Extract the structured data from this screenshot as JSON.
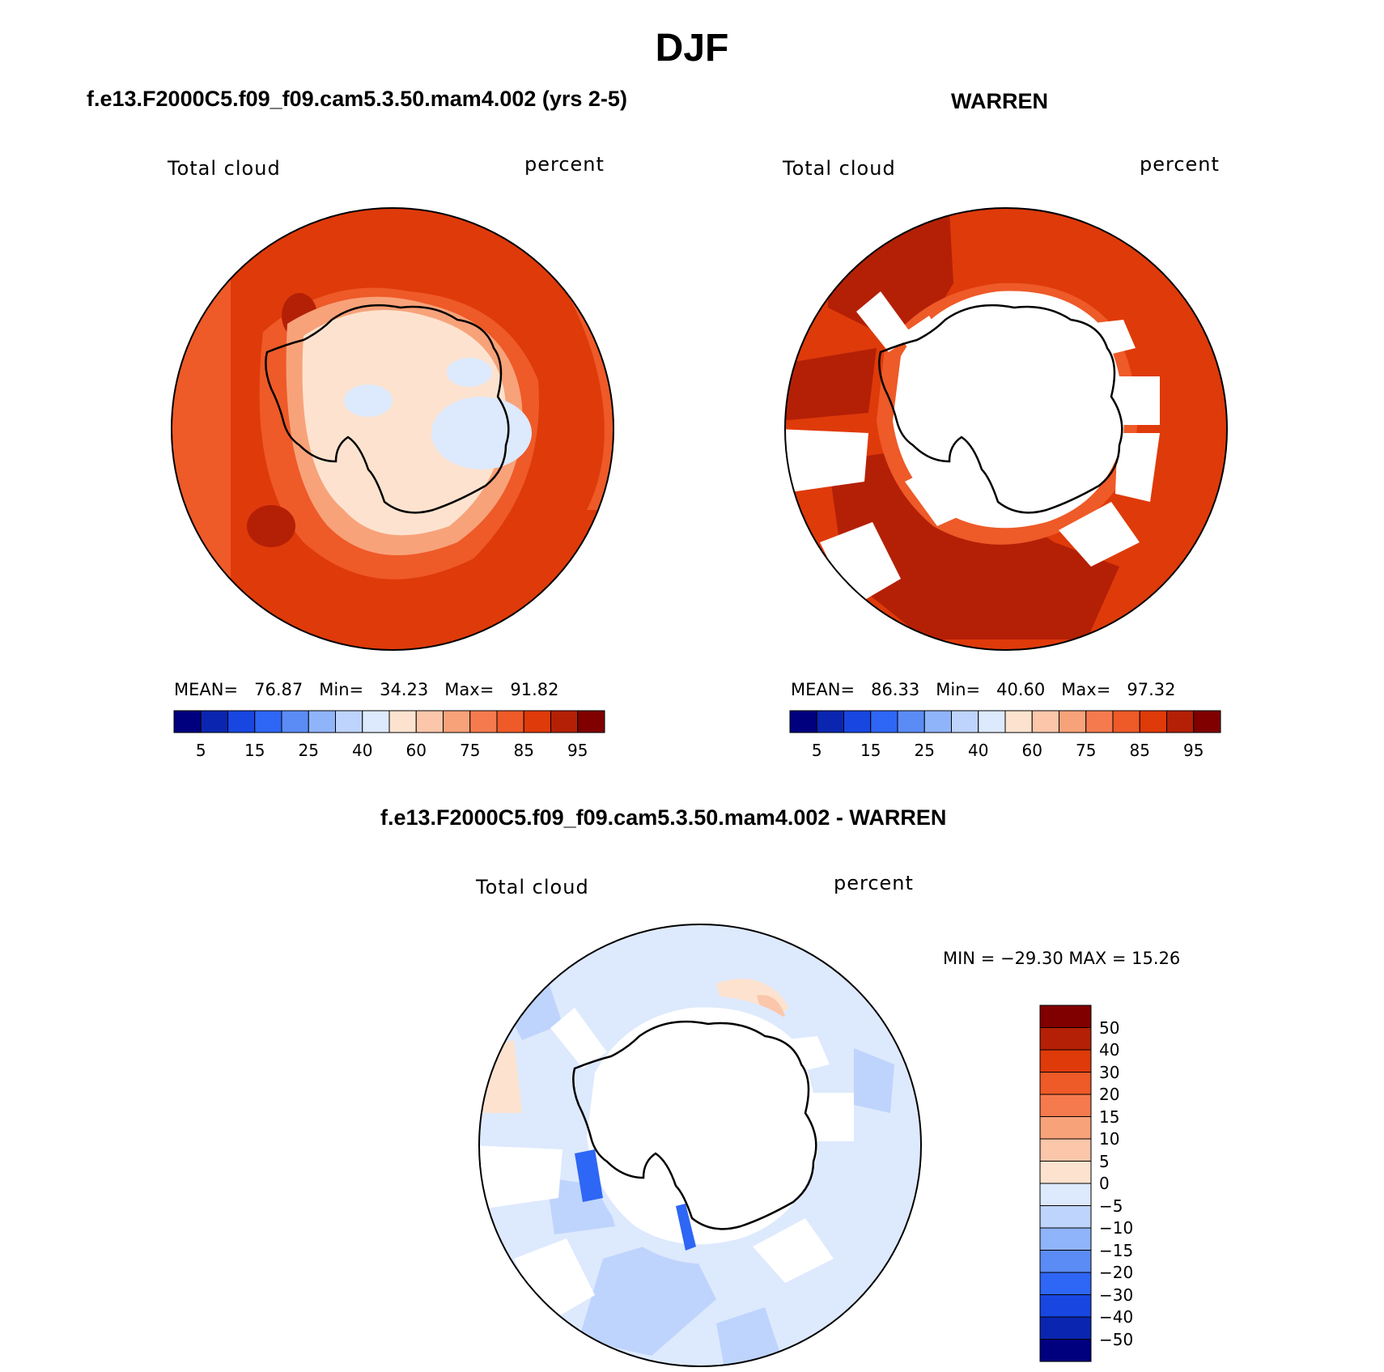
{
  "title": "DJF",
  "panels": [
    {
      "id": "model",
      "title": "f.e13.F2000C5.f09_f09.cam5.3.50.mam4.002 (yrs 2-5)",
      "left_label": "Total cloud",
      "right_label": "percent",
      "stats": {
        "mean_label": "MEAN=",
        "mean": "76.87",
        "min_label": "Min=",
        "min": "34.23",
        "max_label": "Max=",
        "max": "91.82"
      }
    },
    {
      "id": "obs",
      "title": "WARREN",
      "left_label": "Total cloud",
      "right_label": "percent",
      "stats": {
        "mean_label": "MEAN=",
        "mean": "86.33",
        "min_label": "Min=",
        "min": "40.60",
        "max_label": "Max=",
        "max": "97.32"
      }
    },
    {
      "id": "diff",
      "title": "f.e13.F2000C5.f09_f09.cam5.3.50.mam4.002 - WARREN",
      "left_label": "Total cloud",
      "right_label": "percent",
      "minmax": "MIN = −29.30 MAX =   15.26"
    }
  ],
  "chart_data": [
    {
      "type": "heatmap",
      "title": "f.e13.F2000C5.f09_f09.cam5.3.50.mam4.002 (yrs 2-5)",
      "projection": "south-polar-stereographic",
      "variable": "Total cloud",
      "units": "percent",
      "mean": 76.87,
      "min": 34.23,
      "max": 91.82,
      "colorbar": {
        "levels": [
          5,
          10,
          15,
          20,
          25,
          30,
          40,
          50,
          60,
          70,
          75,
          80,
          85,
          90,
          95
        ],
        "tick_labels": [
          "5",
          "15",
          "25",
          "40",
          "60",
          "75",
          "85",
          "95"
        ],
        "colors": [
          "#00007f",
          "#0a26b0",
          "#1846e0",
          "#2e66f5",
          "#5b8cf5",
          "#8fb4fa",
          "#bed4fc",
          "#dde9fd",
          "#fde3cf",
          "#fbc6aa",
          "#f8a27a",
          "#f57a4e",
          "#ee5a28",
          "#df3a0a",
          "#b42006",
          "#800000"
        ]
      }
    },
    {
      "type": "heatmap",
      "title": "WARREN",
      "projection": "south-polar-stereographic",
      "variable": "Total cloud",
      "units": "percent",
      "mean": 86.33,
      "min": 40.6,
      "max": 97.32,
      "colorbar": {
        "levels": [
          5,
          10,
          15,
          20,
          25,
          30,
          40,
          50,
          60,
          70,
          75,
          80,
          85,
          90,
          95
        ],
        "tick_labels": [
          "5",
          "15",
          "25",
          "40",
          "60",
          "75",
          "85",
          "95"
        ],
        "colors": [
          "#00007f",
          "#0a26b0",
          "#1846e0",
          "#2e66f5",
          "#5b8cf5",
          "#8fb4fa",
          "#bed4fc",
          "#dde9fd",
          "#fde3cf",
          "#fbc6aa",
          "#f8a27a",
          "#f57a4e",
          "#ee5a28",
          "#df3a0a",
          "#b42006",
          "#800000"
        ]
      }
    },
    {
      "type": "heatmap",
      "title": "f.e13.F2000C5.f09_f09.cam5.3.50.mam4.002 - WARREN",
      "projection": "south-polar-stereographic",
      "variable": "Total cloud",
      "units": "percent",
      "min": -29.3,
      "max": 15.26,
      "colorbar": {
        "tick_labels": [
          "50",
          "40",
          "30",
          "20",
          "15",
          "10",
          "5",
          "0",
          "−5",
          "−10",
          "−15",
          "−20",
          "−30",
          "−40",
          "−50"
        ],
        "colors": [
          "#800000",
          "#b42006",
          "#df3a0a",
          "#ee5a28",
          "#f57a4e",
          "#f8a27a",
          "#fbc6aa",
          "#fde3cf",
          "#dde9fd",
          "#bed4fc",
          "#8fb4fa",
          "#5b8cf5",
          "#2e66f5",
          "#1846e0",
          "#0a26b0",
          "#00007f"
        ]
      }
    }
  ]
}
